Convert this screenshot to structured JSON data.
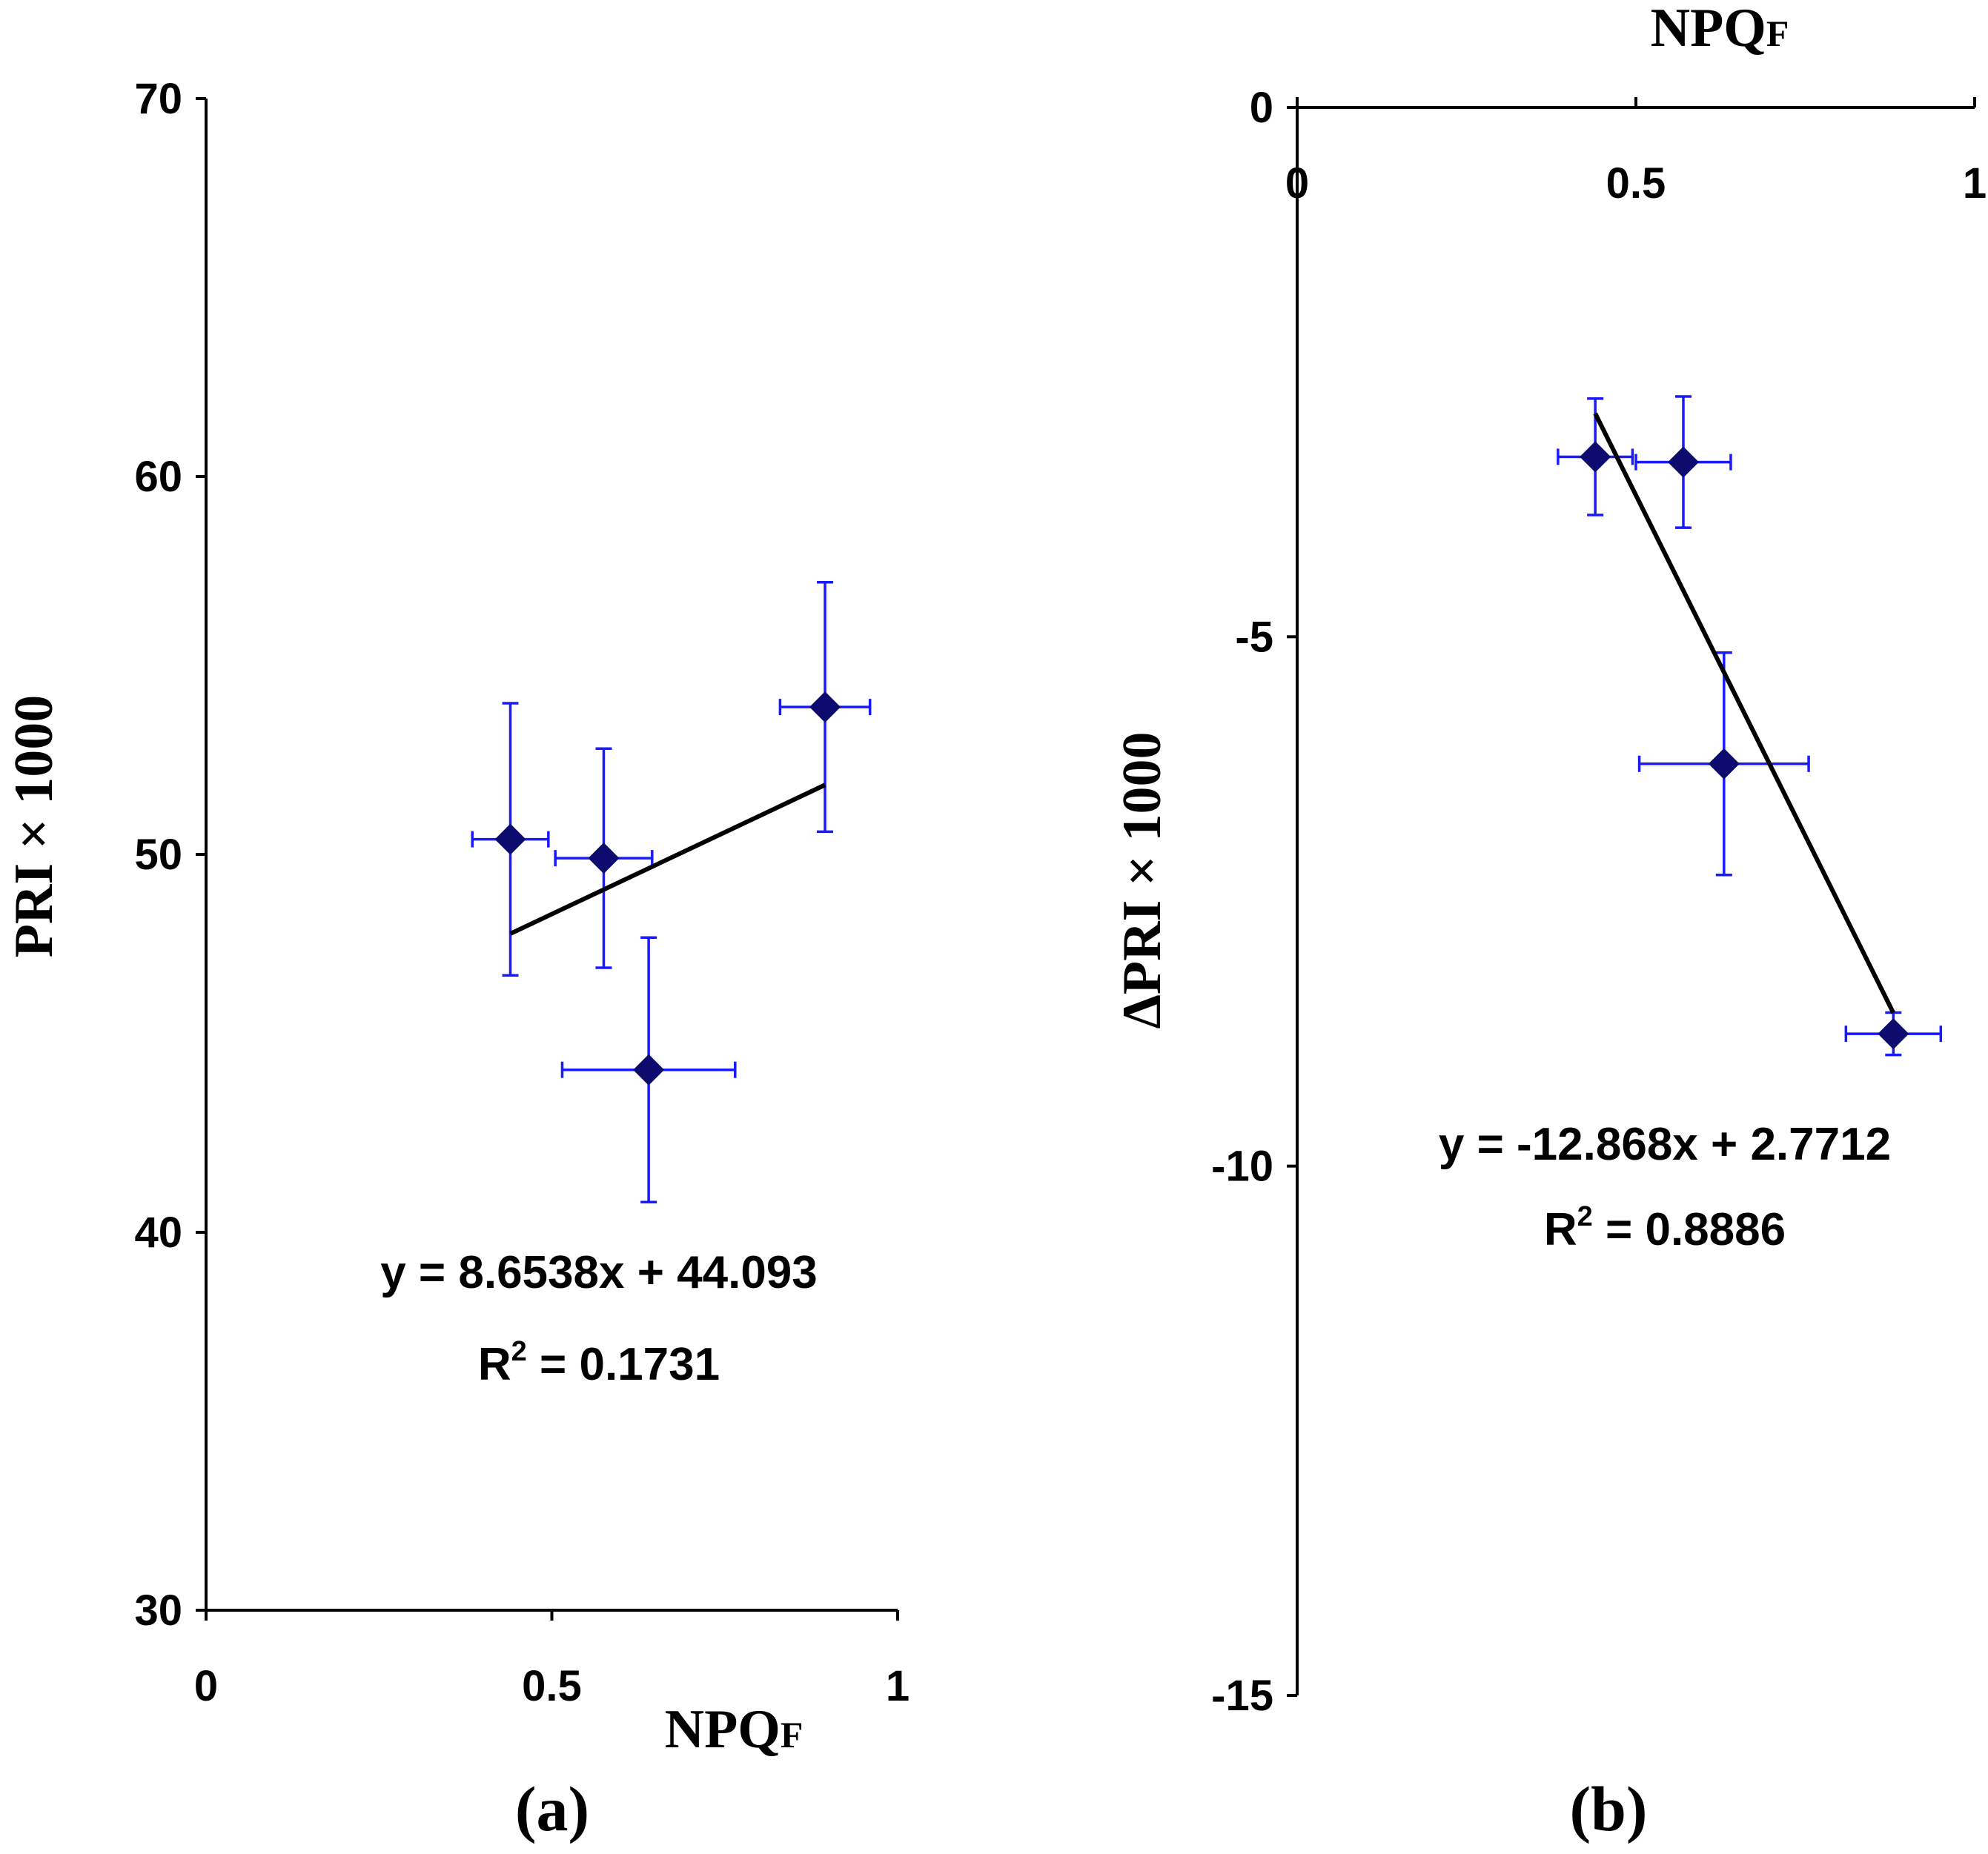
{
  "chart_data": [
    {
      "panel": "(a)",
      "type": "scatter",
      "xlabel": "NPQ",
      "xlabel_sub": "F",
      "ylabel": "PRI × 1000",
      "xlim": [
        0,
        1
      ],
      "ylim": [
        30,
        70
      ],
      "x_ticks": [
        "0",
        "0.5",
        "1"
      ],
      "x_tick_values": [
        0,
        0.5,
        1
      ],
      "y_ticks": [
        "30",
        "40",
        "50",
        "60",
        "70"
      ],
      "y_tick_values": [
        30,
        40,
        50,
        60,
        70
      ],
      "x_axis_position": "bottom",
      "points": [
        {
          "x": 0.44,
          "y": 50.4,
          "xerr": 0.055,
          "yerr": 3.6
        },
        {
          "x": 0.575,
          "y": 49.9,
          "xerr": 0.07,
          "yerr": 2.9
        },
        {
          "x": 0.64,
          "y": 44.3,
          "xerr": 0.125,
          "yerr": 3.5
        },
        {
          "x": 0.895,
          "y": 53.9,
          "xerr": 0.065,
          "yerr": 3.3
        }
      ],
      "trendline": {
        "slope": 8.6538,
        "intercept": 44.093,
        "x_range": [
          0.44,
          0.895
        ]
      },
      "equation": "y = 8.6538x + 44.093",
      "r2_label": "R",
      "r2_sup": "2",
      "r2_value": " = 0.1731"
    },
    {
      "panel": "(b)",
      "type": "scatter",
      "xlabel": "NPQ",
      "xlabel_sub": "F",
      "ylabel": "ΔPRI × 1000",
      "xlim": [
        0,
        1
      ],
      "ylim": [
        -15,
        0
      ],
      "x_ticks": [
        "0",
        "0.5",
        "1"
      ],
      "x_tick_values": [
        0,
        0.5,
        1
      ],
      "y_ticks": [
        "0",
        "-5",
        "-10",
        "-15"
      ],
      "y_tick_values": [
        0,
        -5,
        -10,
        -15
      ],
      "x_axis_position": "top",
      "points": [
        {
          "x": 0.44,
          "y": -3.3,
          "xerr": 0.055,
          "yerr": 0.55
        },
        {
          "x": 0.57,
          "y": -3.35,
          "xerr": 0.07,
          "yerr": 0.62
        },
        {
          "x": 0.63,
          "y": -6.2,
          "xerr": 0.125,
          "yerr": 1.05
        },
        {
          "x": 0.88,
          "y": -8.75,
          "xerr": 0.07,
          "yerr": 0.2
        }
      ],
      "trendline": {
        "slope": -12.868,
        "intercept": 2.7712,
        "x_range": [
          0.44,
          0.88
        ]
      },
      "equation": "y = -12.868x + 2.7712",
      "r2_label": "R",
      "r2_sup": "2",
      "r2_value": " = 0.8886"
    }
  ]
}
